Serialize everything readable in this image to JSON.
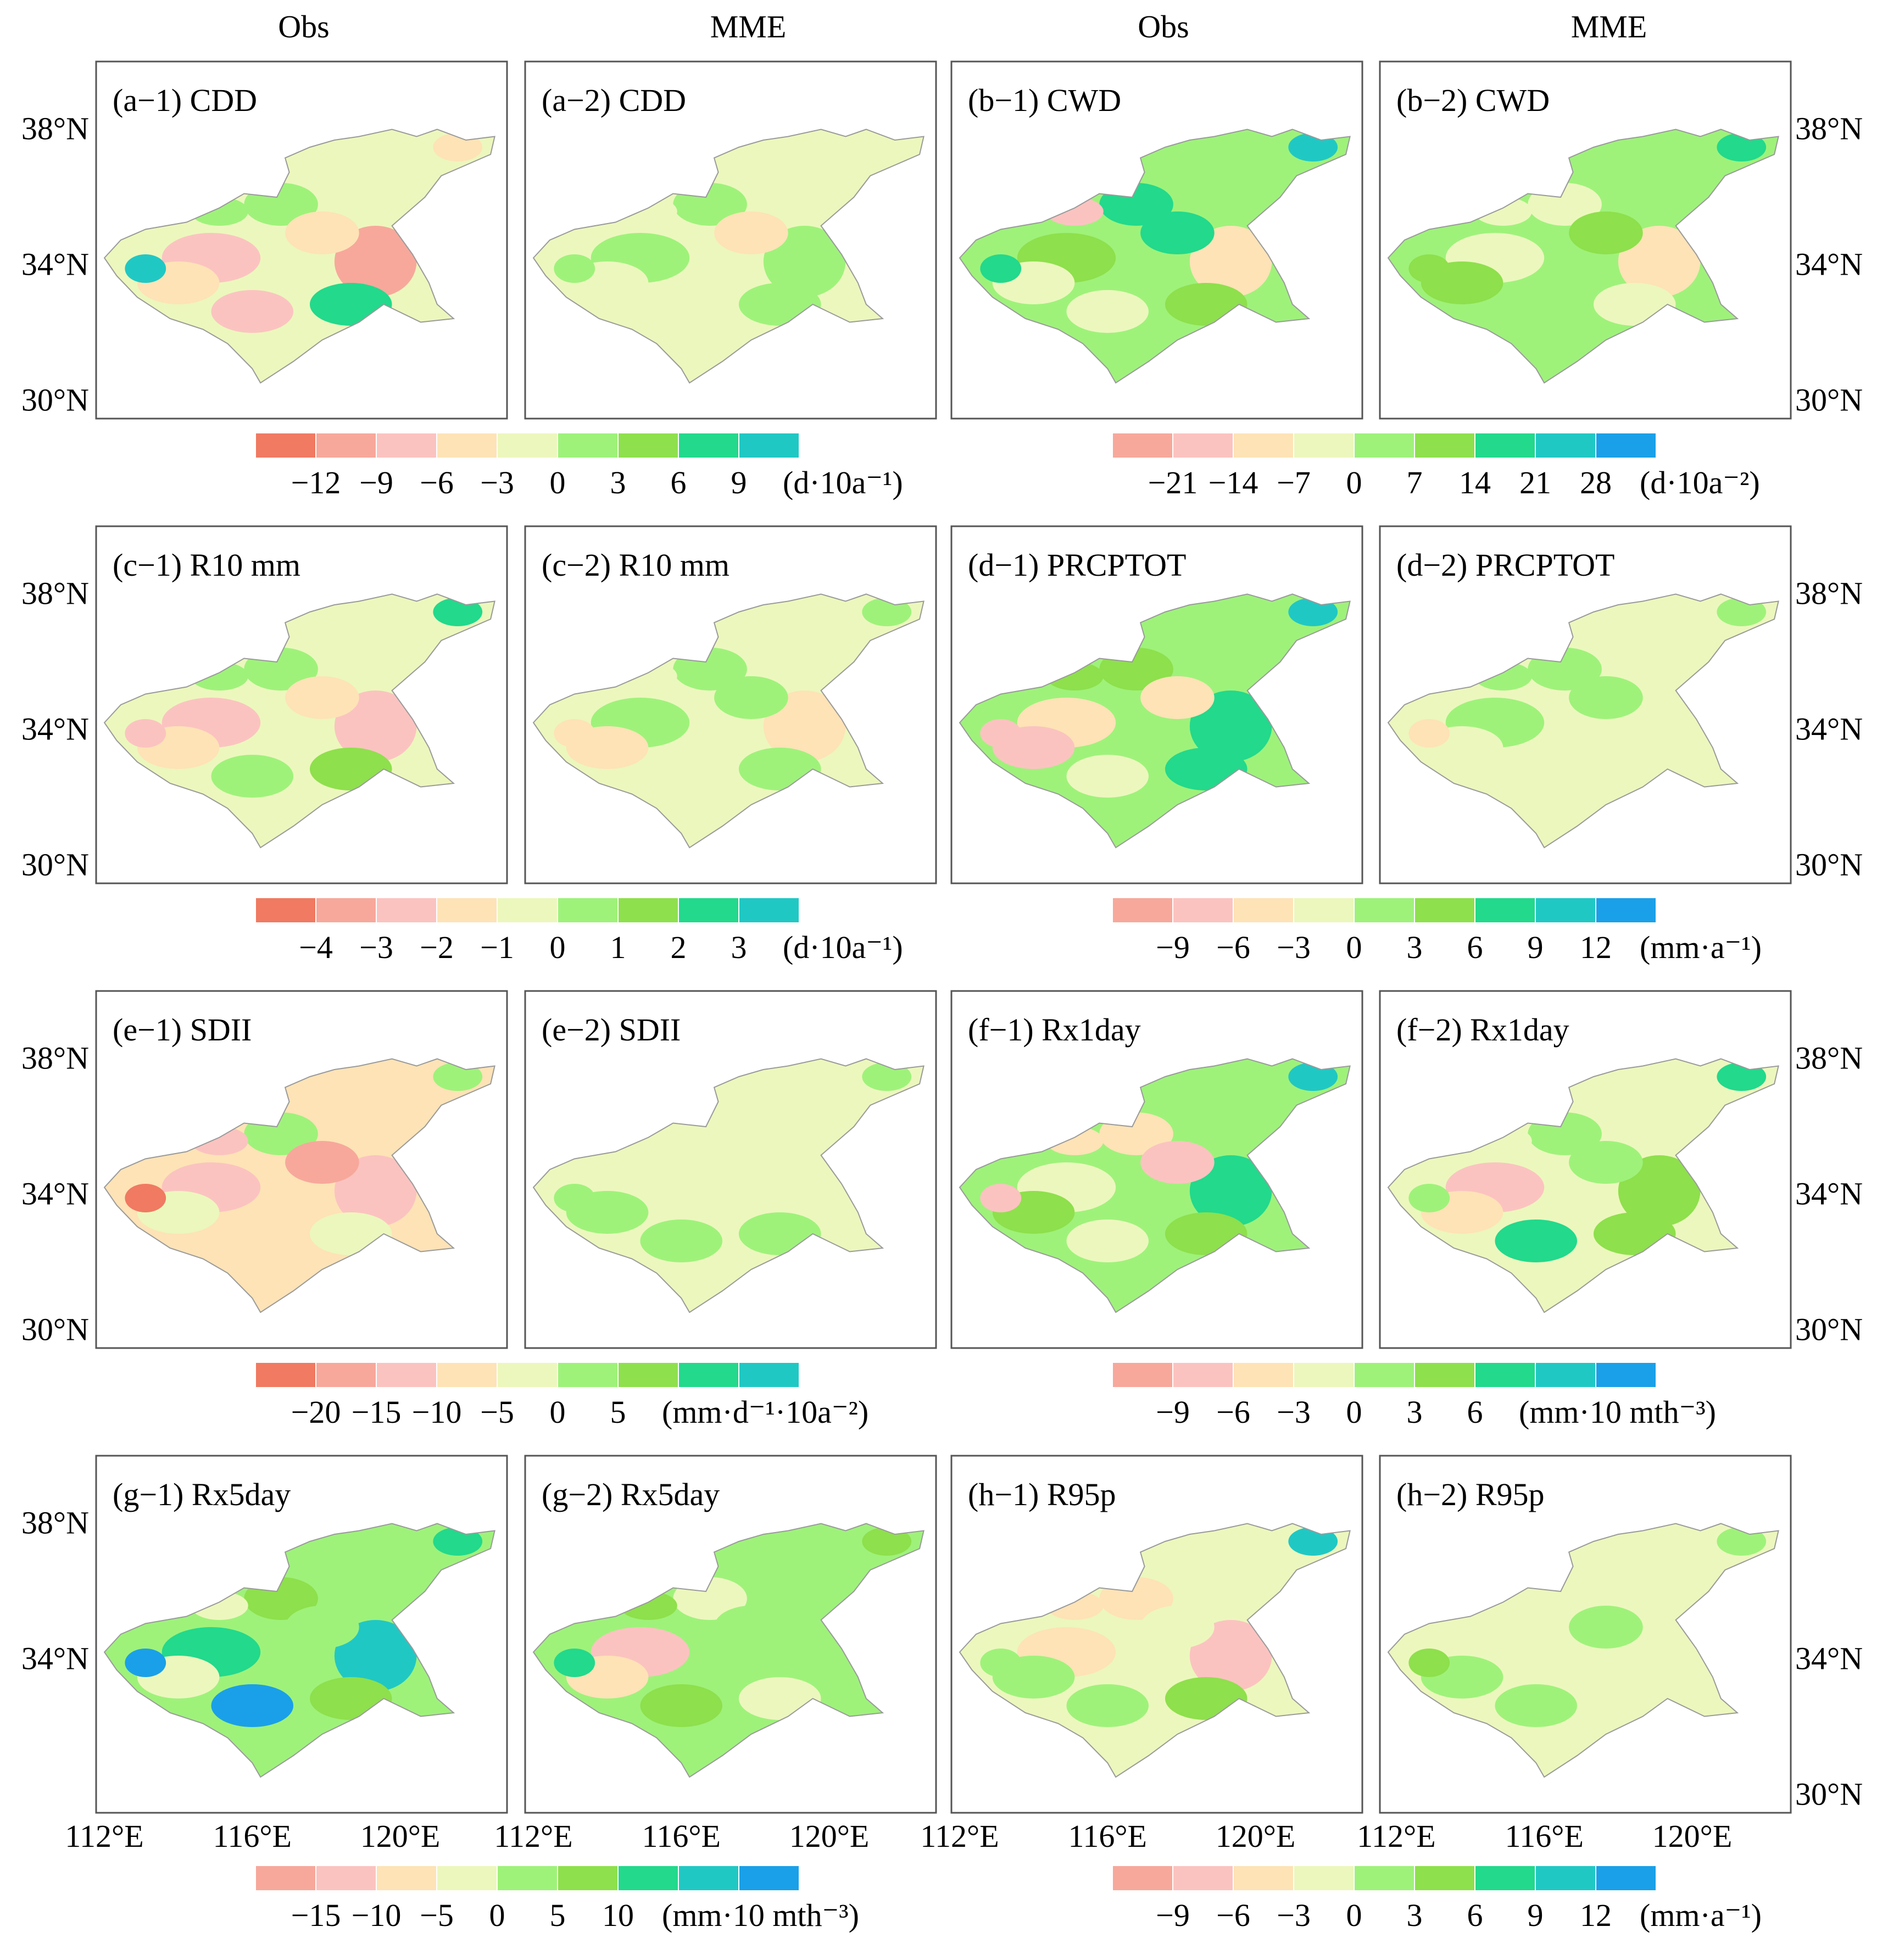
{
  "column_headers": [
    "Obs",
    "MME",
    "Obs",
    "MME"
  ],
  "latitude_labels": [
    "38°N",
    "34°N",
    "30°N"
  ],
  "longitude_labels": [
    "112°E",
    "116°E",
    "120°E"
  ],
  "panels": [
    {
      "label": "(a−1) CDD",
      "palette": "cdd_obs"
    },
    {
      "label": "(a−2) CDD",
      "palette": "cdd_mme"
    },
    {
      "label": "(b−1) CWD",
      "palette": "cwd_obs"
    },
    {
      "label": "(b−2) CWD",
      "palette": "cwd_mme"
    },
    {
      "label": "(c−1) R10 mm",
      "palette": "r10_obs"
    },
    {
      "label": "(c−2) R10 mm",
      "palette": "r10_mme"
    },
    {
      "label": "(d−1) PRCPTOT",
      "palette": "prcp_obs"
    },
    {
      "label": "(d−2) PRCPTOT",
      "palette": "prcp_mme"
    },
    {
      "label": "(e−1) SDII",
      "palette": "sdii_obs"
    },
    {
      "label": "(e−2) SDII",
      "palette": "sdii_mme"
    },
    {
      "label": "(f−1) Rx1day",
      "palette": "rx1_obs"
    },
    {
      "label": "(f−2) Rx1day",
      "palette": "rx1_mme"
    },
    {
      "label": "(g−1) Rx5day",
      "palette": "rx5_obs"
    },
    {
      "label": "(g−2) Rx5day",
      "palette": "rx5_mme"
    },
    {
      "label": "(h−1) R95p",
      "palette": "r95_obs"
    },
    {
      "label": "(h−2) R95p",
      "palette": "r95_mme"
    }
  ],
  "colorbars": [
    {
      "colors": [
        "#f07a62",
        "#f7a89b",
        "#fbc3c0",
        "#fde3b6",
        "#ecf7bd",
        "#9ef27a",
        "#8ee04c",
        "#22d98c",
        "#20c8c4"
      ],
      "ticks": [
        "−12",
        "−9",
        "−6",
        "−3",
        "0",
        "3",
        "6",
        "9"
      ],
      "unit": "(d·10a⁻¹)"
    },
    {
      "colors": [
        "#f7a89b",
        "#fbc3c0",
        "#fde3b6",
        "#ecf7bd",
        "#9ef27a",
        "#8ee04c",
        "#22d98c",
        "#20c8c4",
        "#1aa0e8"
      ],
      "ticks": [
        "−21",
        "−14",
        "−7",
        "0",
        "7",
        "14",
        "21",
        "28"
      ],
      "unit": "(d·10a⁻²)"
    },
    {
      "colors": [
        "#f07a62",
        "#f7a89b",
        "#fbc3c0",
        "#fde3b6",
        "#ecf7bd",
        "#9ef27a",
        "#8ee04c",
        "#22d98c",
        "#20c8c4"
      ],
      "ticks": [
        "−4",
        "−3",
        "−2",
        "−1",
        "0",
        "1",
        "2",
        "3"
      ],
      "unit": "(d·10a⁻¹)"
    },
    {
      "colors": [
        "#f7a89b",
        "#fbc3c0",
        "#fde3b6",
        "#ecf7bd",
        "#9ef27a",
        "#8ee04c",
        "#22d98c",
        "#20c8c4",
        "#1aa0e8"
      ],
      "ticks": [
        "−9",
        "−6",
        "−3",
        "0",
        "3",
        "6",
        "9",
        "12"
      ],
      "unit": "(mm·a⁻¹)"
    },
    {
      "colors": [
        "#f07a62",
        "#f7a89b",
        "#fbc3c0",
        "#fde3b6",
        "#ecf7bd",
        "#9ef27a",
        "#8ee04c",
        "#22d98c",
        "#20c8c4"
      ],
      "ticks": [
        "−20",
        "−15",
        "−10",
        "−5",
        "0",
        "5"
      ],
      "unit": "(mm·d⁻¹·10a⁻²)"
    },
    {
      "colors": [
        "#f7a89b",
        "#fbc3c0",
        "#fde3b6",
        "#ecf7bd",
        "#9ef27a",
        "#8ee04c",
        "#22d98c",
        "#20c8c4",
        "#1aa0e8"
      ],
      "ticks": [
        "−9",
        "−6",
        "−3",
        "0",
        "3",
        "6"
      ],
      "unit": "(mm·10 mth⁻³)"
    },
    {
      "colors": [
        "#f7a89b",
        "#fbc3c0",
        "#fde3b6",
        "#ecf7bd",
        "#9ef27a",
        "#8ee04c",
        "#22d98c",
        "#20c8c4",
        "#1aa0e8"
      ],
      "ticks": [
        "−15",
        "−10",
        "−5",
        "0",
        "5",
        "10"
      ],
      "unit": "(mm·10 mth⁻³)"
    },
    {
      "colors": [
        "#f7a89b",
        "#fbc3c0",
        "#fde3b6",
        "#ecf7bd",
        "#9ef27a",
        "#8ee04c",
        "#22d98c",
        "#20c8c4",
        "#1aa0e8"
      ],
      "ticks": [
        "−9",
        "−6",
        "−3",
        "0",
        "3",
        "6",
        "9",
        "12"
      ],
      "unit": "(mm·a⁻¹)"
    }
  ],
  "palettes": {
    "cdd_obs": {
      "base": "#ecf7bd",
      "fills": [
        "#fbc3c0",
        "#fde3b6",
        "#9ef27a",
        "#f7a89b",
        "#fbc3c0",
        "#fde3b6",
        "#22d98c",
        "#9ef27a",
        "#fde3b6",
        "#20c8c4"
      ]
    },
    "cdd_mme": {
      "base": "#ecf7bd",
      "fills": [
        "#9ef27a",
        "#ecf7bd",
        "#9ef27a",
        "#9ef27a",
        "#ecf7bd",
        "#fde3b6",
        "#9ef27a",
        "#ecf7bd",
        "#ecf7bd",
        "#9ef27a"
      ]
    },
    "cwd_obs": {
      "base": "#9ef27a",
      "fills": [
        "#8ee04c",
        "#ecf7bd",
        "#22d98c",
        "#fde3b6",
        "#ecf7bd",
        "#22d98c",
        "#8ee04c",
        "#fbc3c0",
        "#20c8c4",
        "#22d98c"
      ]
    },
    "cwd_mme": {
      "base": "#9ef27a",
      "fills": [
        "#ecf7bd",
        "#8ee04c",
        "#ecf7bd",
        "#fde3b6",
        "#9ef27a",
        "#8ee04c",
        "#ecf7bd",
        "#ecf7bd",
        "#22d98c",
        "#8ee04c"
      ]
    },
    "r10_obs": {
      "base": "#ecf7bd",
      "fills": [
        "#fbc3c0",
        "#fde3b6",
        "#9ef27a",
        "#fbc3c0",
        "#9ef27a",
        "#fde3b6",
        "#8ee04c",
        "#9ef27a",
        "#22d98c",
        "#fbc3c0"
      ]
    },
    "r10_mme": {
      "base": "#ecf7bd",
      "fills": [
        "#9ef27a",
        "#fde3b6",
        "#9ef27a",
        "#fde3b6",
        "#ecf7bd",
        "#9ef27a",
        "#9ef27a",
        "#ecf7bd",
        "#9ef27a",
        "#fde3b6"
      ]
    },
    "prcp_obs": {
      "base": "#9ef27a",
      "fills": [
        "#fde3b6",
        "#fbc3c0",
        "#8ee04c",
        "#22d98c",
        "#ecf7bd",
        "#fde3b6",
        "#22d98c",
        "#8ee04c",
        "#20c8c4",
        "#fbc3c0"
      ]
    },
    "prcp_mme": {
      "base": "#ecf7bd",
      "fills": [
        "#9ef27a",
        "#ecf7bd",
        "#9ef27a",
        "#ecf7bd",
        "#ecf7bd",
        "#9ef27a",
        "#ecf7bd",
        "#9ef27a",
        "#9ef27a",
        "#fde3b6"
      ]
    },
    "sdii_obs": {
      "base": "#fde3b6",
      "fills": [
        "#fbc3c0",
        "#ecf7bd",
        "#9ef27a",
        "#fbc3c0",
        "#fde3b6",
        "#f7a89b",
        "#ecf7bd",
        "#fbc3c0",
        "#9ef27a",
        "#f07a62"
      ]
    },
    "sdii_mme": {
      "base": "#ecf7bd",
      "fills": [
        "#ecf7bd",
        "#9ef27a",
        "#ecf7bd",
        "#ecf7bd",
        "#9ef27a",
        "#ecf7bd",
        "#9ef27a",
        "#ecf7bd",
        "#9ef27a",
        "#9ef27a"
      ]
    },
    "rx1_obs": {
      "base": "#9ef27a",
      "fills": [
        "#ecf7bd",
        "#8ee04c",
        "#fde3b6",
        "#22d98c",
        "#ecf7bd",
        "#fbc3c0",
        "#8ee04c",
        "#fde3b6",
        "#20c8c4",
        "#fbc3c0"
      ]
    },
    "rx1_mme": {
      "base": "#ecf7bd",
      "fills": [
        "#fbc3c0",
        "#fde3b6",
        "#9ef27a",
        "#8ee04c",
        "#22d98c",
        "#9ef27a",
        "#8ee04c",
        "#ecf7bd",
        "#22d98c",
        "#9ef27a"
      ]
    },
    "rx5_obs": {
      "base": "#9ef27a",
      "fills": [
        "#22d98c",
        "#ecf7bd",
        "#8ee04c",
        "#20c8c4",
        "#1aa0e8",
        "#9ef27a",
        "#8ee04c",
        "#ecf7bd",
        "#22d98c",
        "#1aa0e8"
      ]
    },
    "rx5_mme": {
      "base": "#9ef27a",
      "fills": [
        "#fbc3c0",
        "#fde3b6",
        "#ecf7bd",
        "#9ef27a",
        "#8ee04c",
        "#9ef27a",
        "#ecf7bd",
        "#8ee04c",
        "#8ee04c",
        "#22d98c"
      ]
    },
    "r95_obs": {
      "base": "#ecf7bd",
      "fills": [
        "#fde3b6",
        "#9ef27a",
        "#fde3b6",
        "#fbc3c0",
        "#9ef27a",
        "#ecf7bd",
        "#8ee04c",
        "#fde3b6",
        "#20c8c4",
        "#9ef27a"
      ]
    },
    "r95_mme": {
      "base": "#ecf7bd",
      "fills": [
        "#ecf7bd",
        "#9ef27a",
        "#ecf7bd",
        "#ecf7bd",
        "#9ef27a",
        "#9ef27a",
        "#ecf7bd",
        "#ecf7bd",
        "#9ef27a",
        "#8ee04c"
      ]
    }
  }
}
